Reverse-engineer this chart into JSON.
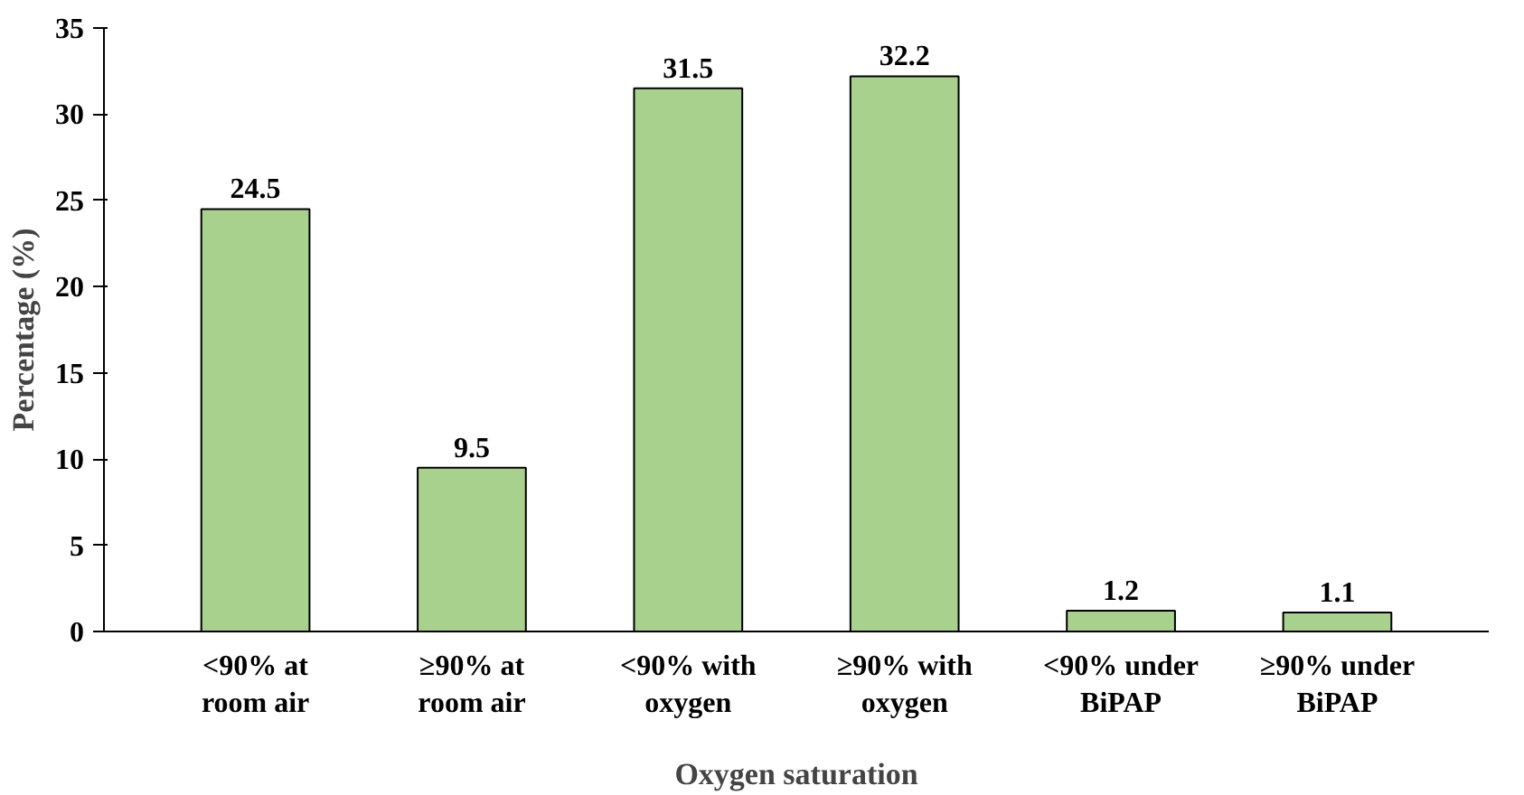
{
  "chart_data": {
    "type": "bar",
    "xlabel": "Oxygen saturation",
    "ylabel": "Percentage (%)",
    "categories": [
      "<90% at\nroom air",
      "≥90% at\nroom air",
      "<90% with\noxygen",
      "≥90% with\noxygen",
      "<90% under\nBiPAP",
      "≥90% under\nBiPAP"
    ],
    "values": [
      24.5,
      9.5,
      31.5,
      32.2,
      1.2,
      1.1
    ],
    "color": "#a9d18e",
    "ylim": [
      0,
      35
    ],
    "yticks": [
      0,
      5,
      10,
      15,
      20,
      25,
      30,
      35
    ],
    "grid": false,
    "data_labels": true
  }
}
